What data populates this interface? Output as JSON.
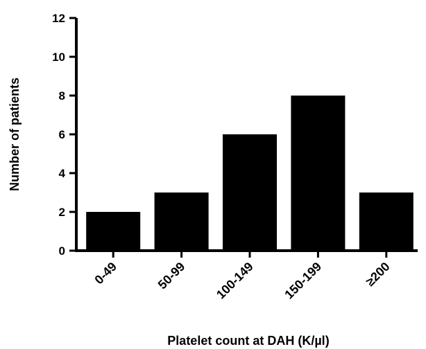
{
  "chart_data": {
    "type": "bar",
    "categories": [
      "0-49",
      "50-99",
      "100-149",
      "150-199",
      "≥200"
    ],
    "values": [
      2,
      3,
      6,
      8,
      3
    ],
    "title": "",
    "xlabel": "Platelet count at DAH (K/µl)",
    "ylabel": "Number of patients",
    "ylim": [
      0,
      12
    ],
    "yticks": [
      0,
      2,
      4,
      6,
      8,
      10,
      12
    ],
    "grid": false,
    "bar_color": "#000000"
  }
}
